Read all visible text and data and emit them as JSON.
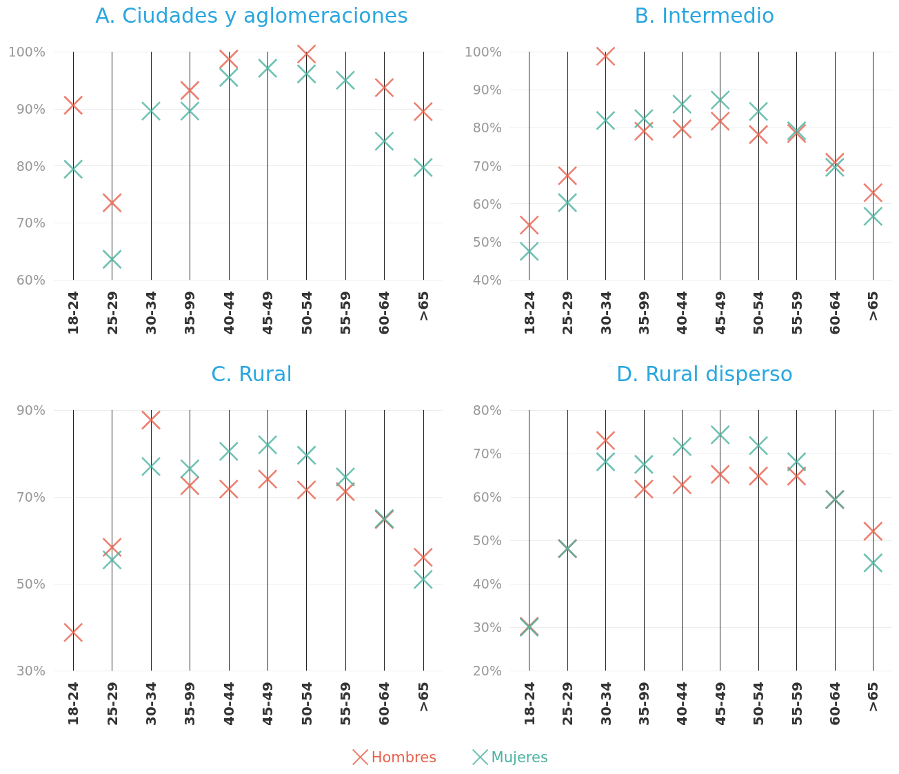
{
  "chart_data": [
    {
      "type": "scatter",
      "title": "A. Ciudades y aglomeraciones",
      "categories": [
        "18-24",
        "25-29",
        "30-34",
        "35-99",
        "40-44",
        "45-49",
        "50-54",
        "55-59",
        "60-64",
        ">65"
      ],
      "series": [
        {
          "color": "#e8604c",
          "marker": "cross",
          "values": [
            90.6,
            73.5,
            null,
            93.2,
            98.7,
            null,
            99.6,
            null,
            93.7,
            89.5
          ]
        },
        {
          "color": "#4bb3a0",
          "marker": "cross",
          "values": [
            79.4,
            63.6,
            89.6,
            89.6,
            95.5,
            97.1,
            96.1,
            95.0,
            84.3,
            79.7
          ]
        }
      ],
      "ylim": [
        60,
        100
      ],
      "yticks": [
        {
          "value": 60,
          "label": "60%"
        },
        {
          "value": 70,
          "label": "70%"
        },
        {
          "value": 80,
          "label": "80%"
        },
        {
          "value": 90,
          "label": "90%"
        },
        {
          "value": 100,
          "label": "100%"
        }
      ],
      "grid": true
    },
    {
      "type": "scatter",
      "title": "B. Intermedio",
      "categories": [
        "18-24",
        "25-29",
        "30-34",
        "35-99",
        "40-44",
        "45-49",
        "50-54",
        "55-59",
        "60-64",
        ">65"
      ],
      "series": [
        {
          "color": "#e8604c",
          "marker": "cross",
          "values": [
            54.4,
            67.4,
            98.8,
            79.1,
            79.7,
            81.7,
            78.2,
            78.5,
            70.9,
            62.9
          ]
        },
        {
          "color": "#4bb3a0",
          "marker": "cross",
          "values": [
            47.5,
            60.3,
            81.9,
            82.4,
            86.2,
            87.3,
            84.3,
            79.2,
            69.6,
            56.7
          ]
        }
      ],
      "ylim": [
        40,
        100
      ],
      "yticks": [
        {
          "value": 40,
          "label": "40%"
        },
        {
          "value": 50,
          "label": "50%"
        },
        {
          "value": 60,
          "label": "60%"
        },
        {
          "value": 70,
          "label": "70%"
        },
        {
          "value": 80,
          "label": "80%"
        },
        {
          "value": 90,
          "label": "90%"
        },
        {
          "value": 100,
          "label": "100%"
        }
      ],
      "grid": true
    },
    {
      "type": "scatter",
      "title": "C. Rural",
      "categories": [
        "18-24",
        "25-29",
        "30-34",
        "35-99",
        "40-44",
        "45-49",
        "50-54",
        "55-59",
        "60-64",
        ">65"
      ],
      "series": [
        {
          "color": "#e8604c",
          "marker": "cross",
          "values": [
            38.8,
            58.4,
            87.7,
            72.6,
            71.8,
            74.1,
            71.6,
            71.2,
            64.8,
            56.1
          ]
        },
        {
          "color": "#4bb3a0",
          "marker": "cross",
          "values": [
            null,
            55.5,
            77.0,
            76.5,
            80.5,
            82.0,
            79.6,
            74.6,
            65.0,
            51.0
          ]
        }
      ],
      "ylim": [
        30,
        90
      ],
      "yticks": [
        {
          "value": 30,
          "label": "30%"
        },
        {
          "value": 50,
          "label": "50%"
        },
        {
          "value": 70,
          "label": "70%"
        },
        {
          "value": 90,
          "label": "90%"
        }
      ],
      "grid": true
    },
    {
      "type": "scatter",
      "title": "D. Rural disperso",
      "categories": [
        "18-24",
        "25-29",
        "30-34",
        "35-99",
        "40-44",
        "45-49",
        "50-54",
        "55-59",
        "60-64",
        ">65"
      ],
      "series": [
        {
          "name": "Hombres",
          "color": "#e8604c",
          "marker": "cross",
          "values": [
            30.2,
            48.1,
            73.0,
            61.8,
            62.8,
            65.2,
            64.8,
            64.8,
            59.4,
            52.1
          ]
        },
        {
          "name": "Mujeres",
          "color": "#4bb3a0",
          "marker": "cross",
          "values": [
            30.0,
            48.1,
            68.1,
            67.5,
            71.6,
            74.3,
            71.8,
            68.1,
            59.4,
            44.8
          ]
        }
      ],
      "ylim": [
        20,
        80
      ],
      "yticks": [
        {
          "value": 20,
          "label": "20%"
        },
        {
          "value": 30,
          "label": "30%"
        },
        {
          "value": 40,
          "label": "40%"
        },
        {
          "value": 50,
          "label": "50%"
        },
        {
          "value": 60,
          "label": "60%"
        },
        {
          "value": 70,
          "label": "70%"
        },
        {
          "value": 80,
          "label": "80%"
        }
      ],
      "grid": true,
      "legend": "bottom"
    }
  ]
}
